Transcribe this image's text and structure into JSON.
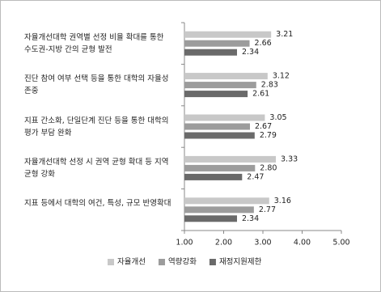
{
  "chart_data": {
    "type": "hbar",
    "categories": [
      "자율개선대학 권역별 선정 비율 확대를 통한\n수도권-지방 간의 균형 발전",
      "진단 참여 여부 선택 등을 통한 대학의 자율성\n존중",
      "지표 간소화, 단일단계 진단 등을 통한 대학의\n평가 부담 완화",
      "자율개선대학 선정 시 권역 균형 확대 등 지역\n균형 강화",
      "지표 등에서 대학의 여건, 특성, 규모 반영확대"
    ],
    "series": [
      {
        "name": "자율개선",
        "color": "#c8c8c8",
        "values": [
          3.21,
          3.12,
          3.05,
          3.33,
          3.16
        ],
        "value_labels": [
          "3.21",
          "3.12",
          "3.05",
          "3.33",
          "3.16"
        ]
      },
      {
        "name": "역량강화",
        "color": "#9c9c9c",
        "values": [
          2.66,
          2.83,
          2.67,
          2.8,
          2.77
        ],
        "value_labels": [
          "2.66",
          "2.83",
          "2.67",
          "2.80",
          "2.77"
        ]
      },
      {
        "name": "재정지원제한",
        "color": "#6a6a6a",
        "values": [
          2.34,
          2.61,
          2.79,
          2.47,
          2.34
        ],
        "value_labels": [
          "2.34",
          "2.61",
          "2.79",
          "2.47",
          "2.34"
        ]
      }
    ],
    "xlim": [
      1,
      5
    ],
    "xticks": [
      {
        "value": 1,
        "label": "1.00"
      },
      {
        "value": 2,
        "label": "2.00"
      },
      {
        "value": 3,
        "label": "3.00"
      },
      {
        "value": 4,
        "label": "4.00"
      },
      {
        "value": 5,
        "label": "5.00"
      }
    ]
  }
}
